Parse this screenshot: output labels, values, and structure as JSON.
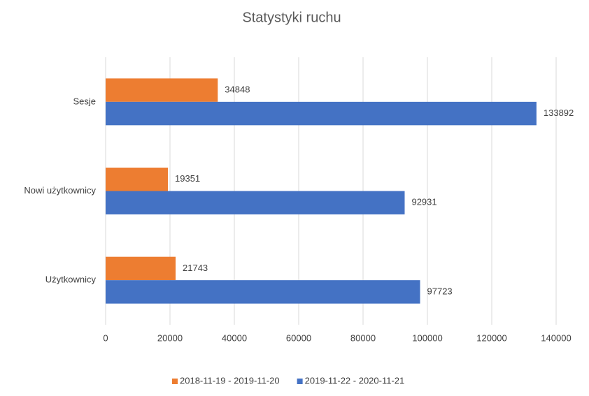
{
  "chart_data": {
    "type": "bar",
    "orientation": "horizontal",
    "title": "Statystyki ruchu",
    "categories": [
      "Sesje",
      "Nowi użytkownicy",
      "Użytkownicy"
    ],
    "series": [
      {
        "name": "2018-11-19 - 2019-11-20",
        "color": "#ed7d31",
        "values": [
          34848,
          19351,
          21743
        ]
      },
      {
        "name": "2019-11-22 - 2020-11-21",
        "color": "#4472c4",
        "values": [
          133892,
          92931,
          97723
        ]
      }
    ],
    "xlim": [
      0,
      140000
    ],
    "xticks": [
      0,
      20000,
      40000,
      60000,
      80000,
      100000,
      120000,
      140000
    ],
    "grid": true,
    "legend": "bottom"
  }
}
